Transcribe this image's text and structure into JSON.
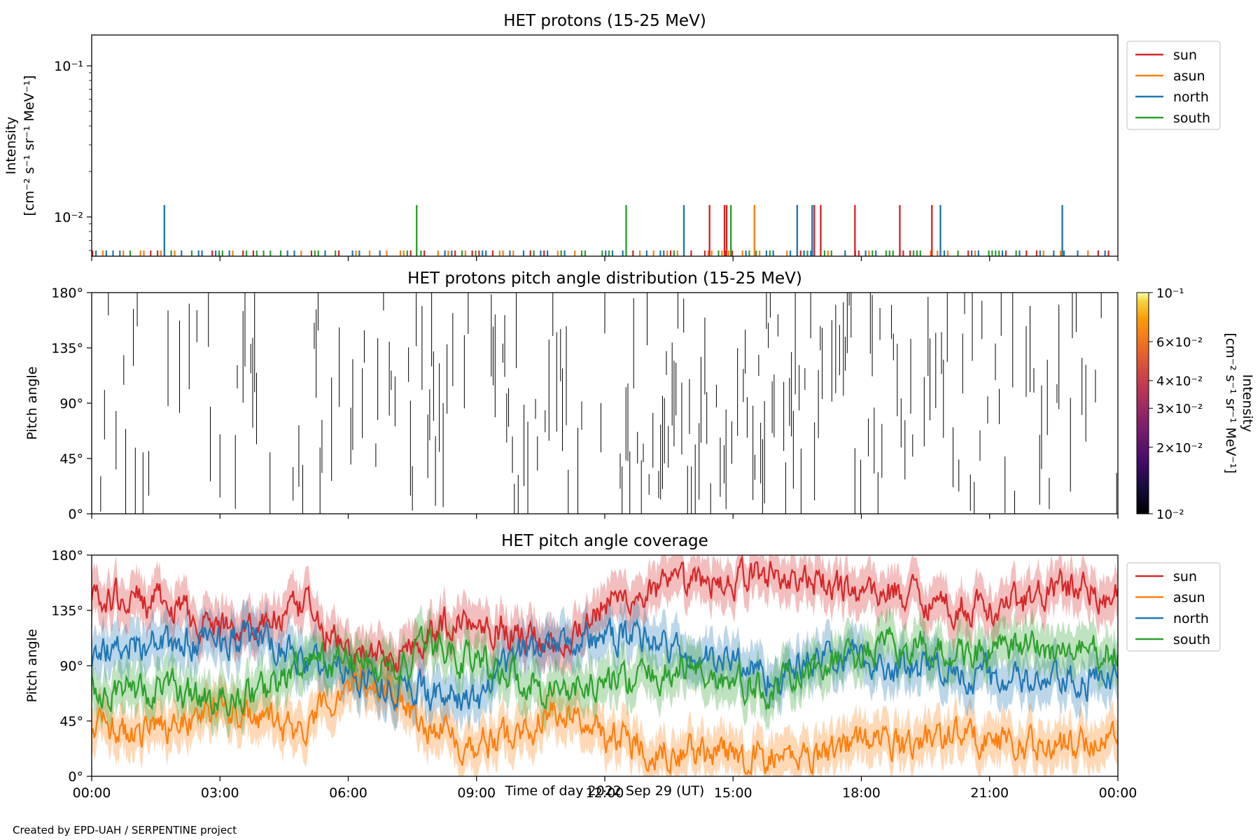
{
  "footer": "Created by EPD-UAH / SERPENTINE project",
  "xlabel": "Time of day 2022 Sep 29 (UT)",
  "xticks": [
    "00:00",
    "03:00",
    "06:00",
    "09:00",
    "12:00",
    "15:00",
    "18:00",
    "21:00",
    "00:00"
  ],
  "colors": {
    "sun": "#d62728",
    "asun": "#ff7f0e",
    "north": "#1f77b4",
    "south": "#2ca02c"
  },
  "chart_data": [
    {
      "type": "line",
      "title": "HET protons (15-25 MeV)",
      "ylabel": [
        "Intensity",
        "[cm⁻² s⁻¹ sr⁻¹ MeV⁻¹]"
      ],
      "yscale": "log",
      "ylim": [
        0.0055,
        0.16
      ],
      "yticks": [
        "10⁻²",
        "10⁻¹"
      ],
      "xlim_hours": [
        0,
        24
      ],
      "legend": {
        "placement": "outside-right",
        "entries": [
          "sun",
          "asun",
          "north",
          "south"
        ]
      },
      "baseline_value": 0.006,
      "spikes": [
        {
          "series": "north",
          "t": 1.7,
          "value": 0.012
        },
        {
          "series": "south",
          "t": 7.6,
          "value": 0.012
        },
        {
          "series": "south",
          "t": 12.5,
          "value": 0.012
        },
        {
          "series": "north",
          "t": 13.85,
          "value": 0.012
        },
        {
          "series": "sun",
          "t": 14.45,
          "value": 0.012
        },
        {
          "series": "sun",
          "t": 14.8,
          "value": 0.012
        },
        {
          "series": "sun",
          "t": 14.85,
          "value": 0.012
        },
        {
          "series": "south",
          "t": 14.95,
          "value": 0.012
        },
        {
          "series": "asun",
          "t": 15.5,
          "value": 0.012
        },
        {
          "series": "north",
          "t": 16.5,
          "value": 0.012
        },
        {
          "series": "north",
          "t": 16.85,
          "value": 0.012
        },
        {
          "series": "sun",
          "t": 16.9,
          "value": 0.012
        },
        {
          "series": "sun",
          "t": 17.05,
          "value": 0.012
        },
        {
          "series": "sun",
          "t": 17.85,
          "value": 0.012
        },
        {
          "series": "sun",
          "t": 18.9,
          "value": 0.012
        },
        {
          "series": "sun",
          "t": 19.65,
          "value": 0.012
        },
        {
          "series": "north",
          "t": 19.85,
          "value": 0.012
        },
        {
          "series": "north",
          "t": 22.7,
          "value": 0.012
        }
      ]
    },
    {
      "type": "heatmap",
      "title": "HET protons pitch angle distribution (15-25 MeV)",
      "ylabel": "Pitch angle",
      "ylim": [
        0,
        180
      ],
      "yticks": [
        "0°",
        "45°",
        "90°",
        "135°",
        "180°"
      ],
      "xlim_hours": [
        0,
        24
      ],
      "colorbar": {
        "label": "Intensity\n[cm⁻² s⁻¹ sr⁻¹ MeV⁻¹]",
        "scale": "log",
        "range": [
          0.01,
          0.1
        ],
        "ticks": [
          "10⁻²",
          "2×10⁻²",
          "3×10⁻²",
          "4×10⁻²",
          "6×10⁻²",
          "10⁻¹"
        ],
        "colormap": "inferno"
      }
    },
    {
      "type": "line",
      "title": "HET pitch angle coverage",
      "ylabel": "Pitch angle",
      "ylim": [
        0,
        180
      ],
      "yticks": [
        "0°",
        "45°",
        "90°",
        "135°",
        "180°"
      ],
      "xlim_hours": [
        0,
        24
      ],
      "legend": {
        "placement": "outside-right",
        "entries": [
          "sun",
          "asun",
          "north",
          "south"
        ]
      },
      "series": [
        {
          "name": "sun",
          "anchors_t": [
            0,
            1,
            2,
            3,
            4,
            5,
            6,
            7,
            8,
            9,
            10,
            11,
            12,
            13,
            14,
            15,
            16,
            17,
            18,
            19,
            20,
            21,
            22,
            23,
            24
          ],
          "anchors_v": [
            140,
            145,
            135,
            120,
            125,
            135,
            100,
            95,
            120,
            130,
            115,
            110,
            140,
            150,
            155,
            160,
            165,
            155,
            150,
            150,
            140,
            135,
            145,
            155,
            145
          ],
          "band": 18
        },
        {
          "name": "asun",
          "anchors_t": [
            0,
            1,
            2,
            3,
            4,
            5,
            6,
            7,
            8,
            9,
            10,
            11,
            12,
            13,
            14,
            15,
            16,
            17,
            18,
            19,
            20,
            21,
            22,
            23,
            24
          ],
          "anchors_v": [
            40,
            35,
            45,
            55,
            45,
            35,
            80,
            70,
            40,
            25,
            35,
            55,
            35,
            25,
            20,
            15,
            15,
            20,
            30,
            25,
            35,
            30,
            25,
            25,
            35
          ],
          "band": 18
        },
        {
          "name": "north",
          "anchors_t": [
            0,
            1,
            2,
            3,
            4,
            5,
            6,
            7,
            8,
            9,
            10,
            11,
            12,
            13,
            14,
            15,
            16,
            17,
            18,
            19,
            20,
            21,
            22,
            23,
            24
          ],
          "anchors_v": [
            100,
            110,
            105,
            115,
            110,
            95,
            85,
            75,
            70,
            60,
            100,
            115,
            110,
            115,
            95,
            95,
            80,
            95,
            95,
            85,
            90,
            80,
            75,
            75,
            80
          ],
          "band": 18
        },
        {
          "name": "south",
          "anchors_t": [
            0,
            1,
            2,
            3,
            4,
            5,
            6,
            7,
            8,
            9,
            10,
            11,
            12,
            13,
            14,
            15,
            16,
            17,
            18,
            19,
            20,
            21,
            22,
            23,
            24
          ],
          "anchors_v": [
            75,
            70,
            70,
            60,
            70,
            90,
            95,
            85,
            105,
            95,
            80,
            70,
            75,
            80,
            90,
            75,
            70,
            90,
            100,
            105,
            100,
            100,
            105,
            100,
            100
          ],
          "band": 18
        }
      ]
    }
  ]
}
